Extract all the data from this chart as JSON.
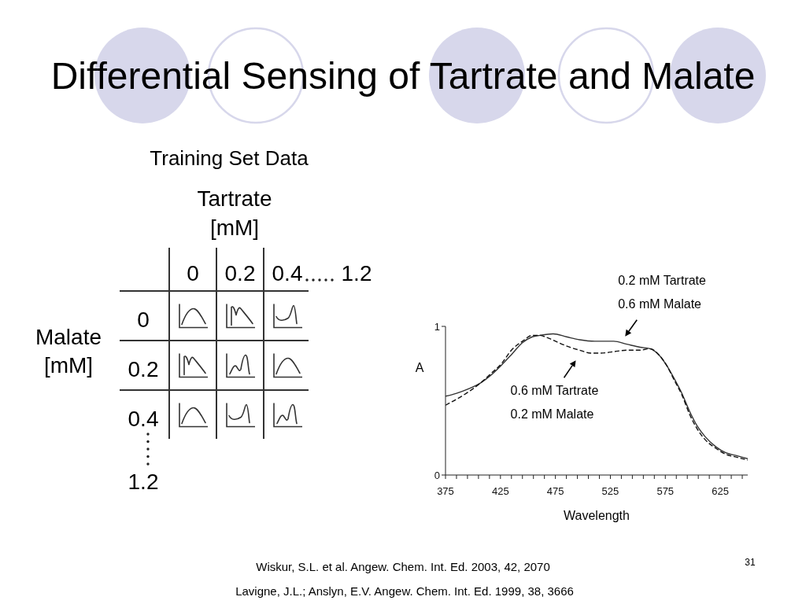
{
  "chart_data": [
    {
      "type": "other",
      "title": "Differential Sensing of Tartrate and Malate",
      "subtitle": "Training Set Data",
      "xlabel": "Tartrate [mM]",
      "ylabel": "Malate [mM]",
      "categories": [
        "0",
        "0.2",
        "0.4",
        "1.2"
      ],
      "y_categories": [
        "0",
        "0.2",
        "0.4",
        "1.2"
      ],
      "annotations": [
        "Wiskur, S.L. et al. Angew. Chem. Int. Ed. 2003, 42, 2070",
        "Lavigne, J.L.; Anslyn, E.V. Angew. Chem. Int. Ed. 1999, 38, 3666",
        "31"
      ]
    },
    {
      "type": "line",
      "xlabel": "Wavelength",
      "ylabel": "A",
      "xlim": [
        375,
        650
      ],
      "xticks": [
        375,
        {
          "value": 385,
          "label": null
        },
        {
          "value": 395,
          "label": null
        },
        {
          "value": 405,
          "label": null
        },
        {
          "value": 415,
          "label": null
        },
        425,
        {
          "value": 435,
          "label": null
        },
        {
          "value": 445,
          "label": null
        },
        {
          "value": 455,
          "label": null
        },
        {
          "value": 465,
          "label": null
        },
        475,
        {
          "value": 485,
          "label": null
        },
        {
          "value": 495,
          "label": null
        },
        {
          "value": 505,
          "label": null
        },
        {
          "value": 515,
          "label": null
        },
        525,
        {
          "value": 535,
          "label": null
        },
        {
          "value": 545,
          "label": null
        },
        {
          "value": 555,
          "label": null
        },
        {
          "value": 565,
          "label": null
        },
        575,
        {
          "value": 585,
          "label": null
        },
        {
          "value": 595,
          "label": null
        },
        {
          "value": 605,
          "label": null
        },
        {
          "value": 615,
          "label": null
        },
        625,
        {
          "value": 635,
          "label": null
        },
        {
          "value": 645,
          "label": null
        }
      ],
      "ylim": [
        0,
        1
      ],
      "yticks": [
        0,
        1
      ],
      "series": [
        {
          "color": "#333333",
          "line_style": "solid",
          "x": [
            375,
            385,
            396,
            407,
            416,
            426,
            435,
            445,
            454,
            461,
            473,
            485,
            497,
            511,
            528,
            540,
            552,
            561,
            569,
            576,
            583,
            590,
            597,
            604,
            611,
            621,
            630,
            640,
            650
          ],
          "values": [
            0.53,
            0.55,
            0.58,
            0.62,
            0.67,
            0.74,
            0.81,
            0.89,
            0.93,
            0.94,
            0.95,
            0.93,
            0.91,
            0.9,
            0.9,
            0.88,
            0.86,
            0.85,
            0.81,
            0.74,
            0.65,
            0.55,
            0.43,
            0.33,
            0.26,
            0.19,
            0.15,
            0.13,
            0.11
          ]
        },
        {
          "color": "#111111",
          "line_style": "dashed",
          "x": [
            375,
            385,
            396,
            407,
            416,
            426,
            435,
            445,
            454,
            460,
            469,
            478,
            488,
            497,
            507,
            516,
            528,
            540,
            552,
            561,
            569,
            576,
            583,
            590,
            597,
            604,
            611,
            621,
            630,
            640,
            650
          ],
          "values": [
            0.47,
            0.51,
            0.56,
            0.62,
            0.68,
            0.75,
            0.84,
            0.9,
            0.94,
            0.94,
            0.92,
            0.89,
            0.86,
            0.84,
            0.82,
            0.82,
            0.83,
            0.84,
            0.84,
            0.85,
            0.81,
            0.74,
            0.64,
            0.54,
            0.41,
            0.31,
            0.24,
            0.18,
            0.14,
            0.12,
            0.1
          ]
        }
      ],
      "annotations": [
        {
          "text": "0.2 mM Tartrate 0.6 mM Malate",
          "x": 537,
          "y": 0.88
        },
        {
          "text": "0.6 mM Tartrate 0.2 mM Malate",
          "x": 495,
          "y": 0.84
        }
      ]
    }
  ]
}
